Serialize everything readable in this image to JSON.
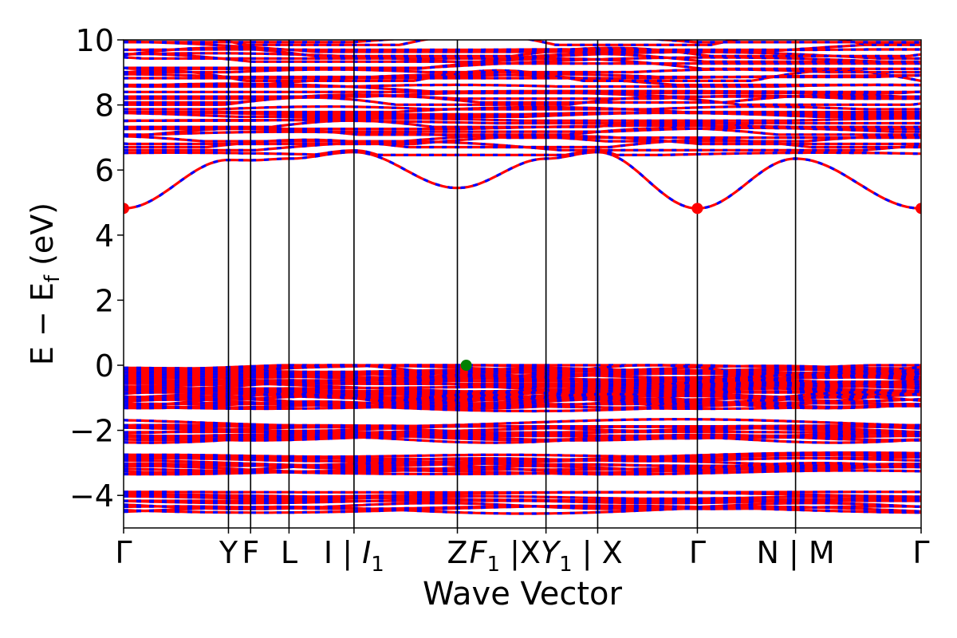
{
  "chart_data": {
    "type": "line",
    "title": "",
    "xlabel": "Wave Vector",
    "ylabel": "E − E_f (eV)",
    "ylabel_parts": {
      "main": "E − E",
      "sub": "f",
      "unit": " (eV)"
    },
    "ylim": [
      -5,
      10
    ],
    "yticks": [
      -4,
      -2,
      0,
      2,
      4,
      6,
      8,
      10
    ],
    "ytick_labels": [
      "−4",
      "−2",
      "0",
      "2",
      "4",
      "6",
      "8",
      "10"
    ],
    "kpath_positions": [
      0,
      1.42,
      1.72,
      2.24,
      3.12,
      4.52,
      5.72,
      6.42,
      7.77,
      9.1,
      10.8
    ],
    "kpath_labels": [
      {
        "text": "Γ"
      },
      {
        "text": "Y"
      },
      {
        "text": "F"
      },
      {
        "text": "L"
      },
      {
        "text": "I | ",
        "italic": "I",
        "sub": "1"
      },
      {
        "text": "Z"
      },
      {
        "italic": "F",
        "sub": "1",
        "text": " |X",
        "after_text": "",
        "italic2": "Y",
        "sub2": "1",
        "tail": " | X"
      },
      {
        "text": ""
      },
      {
        "text": "Γ"
      },
      {
        "text": "N | M"
      },
      {
        "text": "Γ"
      }
    ],
    "series": [
      {
        "color": "#ff0000"
      },
      {
        "color": "#0000ff"
      }
    ],
    "highlight_points": [
      {
        "x": 0,
        "y": 4.82,
        "color": "#ff0000"
      },
      {
        "x": 7.77,
        "y": 4.82,
        "color": "#ff0000"
      },
      {
        "x": 10.8,
        "y": 4.82,
        "color": "#ff0000"
      },
      {
        "x": 4.64,
        "y": 0.0,
        "color": "#008000"
      }
    ],
    "conduction_band_min": [
      {
        "x": 0,
        "y": 4.82
      },
      {
        "x": 1.42,
        "y": 6.31
      },
      {
        "x": 1.72,
        "y": 6.3
      },
      {
        "x": 2.24,
        "y": 6.35
      },
      {
        "x": 3.12,
        "y": 6.55
      },
      {
        "x": 4.52,
        "y": 5.45
      },
      {
        "x": 5.72,
        "y": 6.35
      },
      {
        "x": 6.42,
        "y": 6.55
      },
      {
        "x": 7.77,
        "y": 4.82
      },
      {
        "x": 9.1,
        "y": 6.35
      },
      {
        "x": 10.8,
        "y": 4.82
      }
    ],
    "grid": false,
    "legend": "none"
  }
}
